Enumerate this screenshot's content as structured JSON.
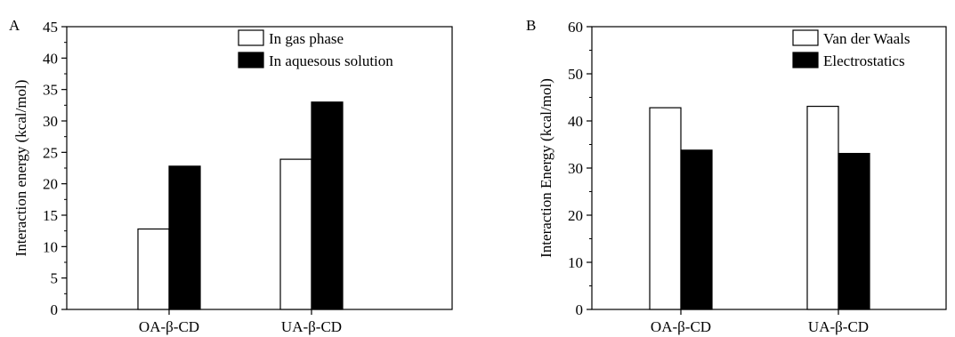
{
  "chart_data": [
    {
      "type": "bar",
      "panel_label": "A",
      "categories": [
        "OA-β-CD",
        "UA-β-CD"
      ],
      "series": [
        {
          "name": "In gas phase",
          "values": [
            12.8,
            23.9
          ],
          "color": "#ffffff"
        },
        {
          "name": "In aquesous solution",
          "values": [
            22.8,
            33.0
          ],
          "color": "#000000"
        }
      ],
      "title": "",
      "xlabel": "",
      "ylabel": "Interaction energy (kcal/mol)",
      "ylim": [
        0,
        45
      ],
      "yticks": [
        0,
        5,
        10,
        15,
        20,
        25,
        30,
        35,
        40,
        45
      ],
      "grid": false,
      "legend_position": "top-right"
    },
    {
      "type": "bar",
      "panel_label": "B",
      "categories": [
        "OA-β-CD",
        "UA-β-CD"
      ],
      "series": [
        {
          "name": "Van der Waals",
          "values": [
            42.8,
            43.1
          ],
          "color": "#ffffff"
        },
        {
          "name": "Electrostatics",
          "values": [
            33.8,
            33.1
          ],
          "color": "#000000"
        }
      ],
      "title": "",
      "xlabel": "",
      "ylabel": "Interaction Energy (kcal/mol)",
      "ylim": [
        0,
        60
      ],
      "yticks": [
        0,
        10,
        20,
        30,
        40,
        50,
        60
      ],
      "grid": false,
      "legend_position": "top-right"
    }
  ]
}
